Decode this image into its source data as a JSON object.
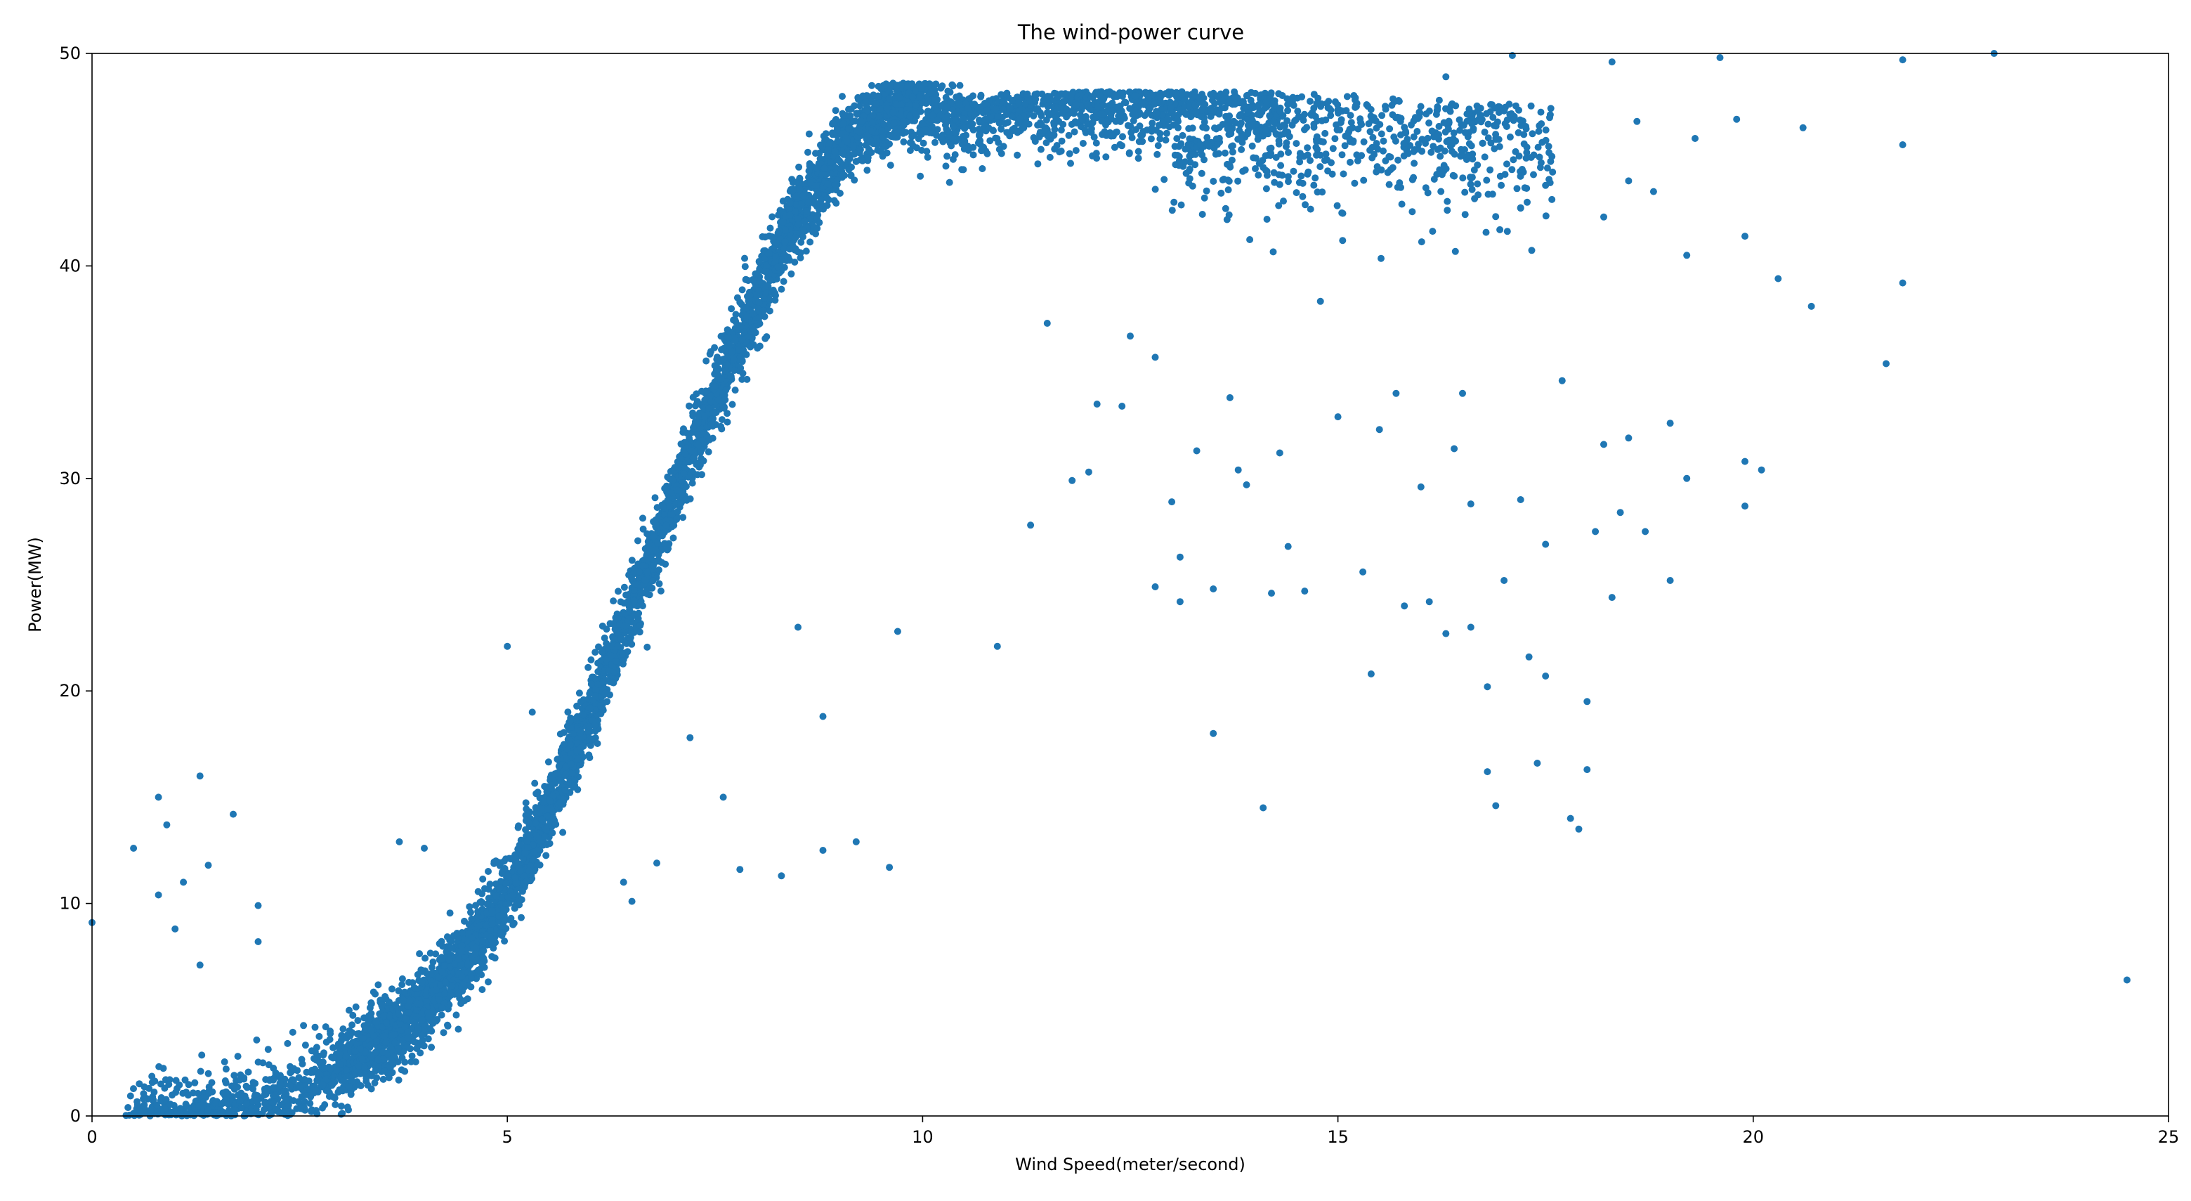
{
  "chart_data": {
    "type": "scatter",
    "title": "The wind-power curve",
    "xlabel": "Wind Speed(meter/second)",
    "ylabel": "Power(MW)",
    "xlim": [
      0,
      25
    ],
    "ylim": [
      0,
      50
    ],
    "xticks": [
      0,
      5,
      10,
      15,
      20,
      25
    ],
    "yticks": [
      0,
      10,
      20,
      30,
      40,
      50
    ],
    "grid": false,
    "marker_color": "#1f77b4",
    "curve_model": {
      "description_of_series": "dense power curve",
      "power_curve_points": [
        [
          0.5,
          0.1
        ],
        [
          1.0,
          0.2
        ],
        [
          1.5,
          0.4
        ],
        [
          2.0,
          0.8
        ],
        [
          2.5,
          1.4
        ],
        [
          3.0,
          2.3
        ],
        [
          3.5,
          3.6
        ],
        [
          4.0,
          5.2
        ],
        [
          4.5,
          7.5
        ],
        [
          5.0,
          10.5
        ],
        [
          5.5,
          14.5
        ],
        [
          6.0,
          19.0
        ],
        [
          6.5,
          24.0
        ],
        [
          7.0,
          29.0
        ],
        [
          7.5,
          34.0
        ],
        [
          8.0,
          38.5
        ],
        [
          8.5,
          42.5
        ],
        [
          9.0,
          45.5
        ],
        [
          9.5,
          47.0
        ],
        [
          10.0,
          47.8
        ],
        [
          11.0,
          48.1
        ],
        [
          12.0,
          48.2
        ],
        [
          13.0,
          48.2
        ],
        [
          14.0,
          48.2
        ],
        [
          15.0,
          48.0
        ],
        [
          16.0,
          47.8
        ],
        [
          17.0,
          47.5
        ],
        [
          17.5,
          47.5
        ]
      ]
    },
    "outliers": [
      [
        0.0,
        9.1
      ],
      [
        0.5,
        12.6
      ],
      [
        0.8,
        15.0
      ],
      [
        0.9,
        13.7
      ],
      [
        1.1,
        11.0
      ],
      [
        1.3,
        16.0
      ],
      [
        1.4,
        11.8
      ],
      [
        1.7,
        14.2
      ],
      [
        1.0,
        8.8
      ],
      [
        1.3,
        7.1
      ],
      [
        2.0,
        9.9
      ],
      [
        2.0,
        8.2
      ],
      [
        0.8,
        10.4
      ],
      [
        3.7,
        12.9
      ],
      [
        4.0,
        12.6
      ],
      [
        5.0,
        22.1
      ],
      [
        5.3,
        19.0
      ],
      [
        6.2,
        19.5
      ],
      [
        6.4,
        11.0
      ],
      [
        6.5,
        10.1
      ],
      [
        6.8,
        11.9
      ],
      [
        7.2,
        17.8
      ],
      [
        7.6,
        15.0
      ],
      [
        7.8,
        11.6
      ],
      [
        8.3,
        11.3
      ],
      [
        8.5,
        23.0
      ],
      [
        8.8,
        18.8
      ],
      [
        8.8,
        12.5
      ],
      [
        9.2,
        12.9
      ],
      [
        9.6,
        11.7
      ],
      [
        9.7,
        22.8
      ],
      [
        10.9,
        22.1
      ],
      [
        11.3,
        27.8
      ],
      [
        11.5,
        37.3
      ],
      [
        11.8,
        29.9
      ],
      [
        12.0,
        30.3
      ],
      [
        12.1,
        33.5
      ],
      [
        12.4,
        33.4
      ],
      [
        12.5,
        36.7
      ],
      [
        12.8,
        24.9
      ],
      [
        12.8,
        35.7
      ],
      [
        13.0,
        28.9
      ],
      [
        13.1,
        24.2
      ],
      [
        13.1,
        26.3
      ],
      [
        13.3,
        31.3
      ],
      [
        13.5,
        18.0
      ],
      [
        13.5,
        24.8
      ],
      [
        13.7,
        33.8
      ],
      [
        13.8,
        30.4
      ],
      [
        13.9,
        29.7
      ],
      [
        14.1,
        14.5
      ],
      [
        14.2,
        24.6
      ],
      [
        14.3,
        31.2
      ],
      [
        14.4,
        26.8
      ],
      [
        14.6,
        24.7
      ],
      [
        15.0,
        32.9
      ],
      [
        15.3,
        25.6
      ],
      [
        15.4,
        20.8
      ],
      [
        15.5,
        32.3
      ],
      [
        15.7,
        34.0
      ],
      [
        15.8,
        24.0
      ],
      [
        16.0,
        29.6
      ],
      [
        16.1,
        24.2
      ],
      [
        16.3,
        22.7
      ],
      [
        16.4,
        31.4
      ],
      [
        16.5,
        34.0
      ],
      [
        16.6,
        23.0
      ],
      [
        16.6,
        28.8
      ],
      [
        16.8,
        16.2
      ],
      [
        16.8,
        20.2
      ],
      [
        16.9,
        14.6
      ],
      [
        17.0,
        25.2
      ],
      [
        17.2,
        29.0
      ],
      [
        17.3,
        21.6
      ],
      [
        17.4,
        16.6
      ],
      [
        17.5,
        26.9
      ],
      [
        17.5,
        20.7
      ],
      [
        17.7,
        34.6
      ],
      [
        17.8,
        14.0
      ],
      [
        17.9,
        13.5
      ],
      [
        18.0,
        16.3
      ],
      [
        18.0,
        19.5
      ],
      [
        18.1,
        27.5
      ],
      [
        18.2,
        31.6
      ],
      [
        18.3,
        24.4
      ],
      [
        18.4,
        28.4
      ],
      [
        18.5,
        31.9
      ],
      [
        18.7,
        27.5
      ],
      [
        19.0,
        25.2
      ],
      [
        19.0,
        32.6
      ],
      [
        19.2,
        30.0
      ],
      [
        19.9,
        30.8
      ],
      [
        19.9,
        28.7
      ],
      [
        20.1,
        30.4
      ],
      [
        19.2,
        40.5
      ],
      [
        19.9,
        41.4
      ],
      [
        20.3,
        39.4
      ],
      [
        20.7,
        38.1
      ],
      [
        21.6,
        35.4
      ],
      [
        21.8,
        39.2
      ],
      [
        21.8,
        45.7
      ],
      [
        21.8,
        49.7
      ],
      [
        20.6,
        46.5
      ],
      [
        19.6,
        49.8
      ],
      [
        22.9,
        50.0
      ],
      [
        24.5,
        6.4
      ],
      [
        18.3,
        49.6
      ],
      [
        18.6,
        46.8
      ],
      [
        18.8,
        43.5
      ],
      [
        19.3,
        46.0
      ],
      [
        19.8,
        46.9
      ],
      [
        17.1,
        49.9
      ],
      [
        18.2,
        42.3
      ],
      [
        18.5,
        44.0
      ],
      [
        16.3,
        48.9
      ]
    ]
  }
}
